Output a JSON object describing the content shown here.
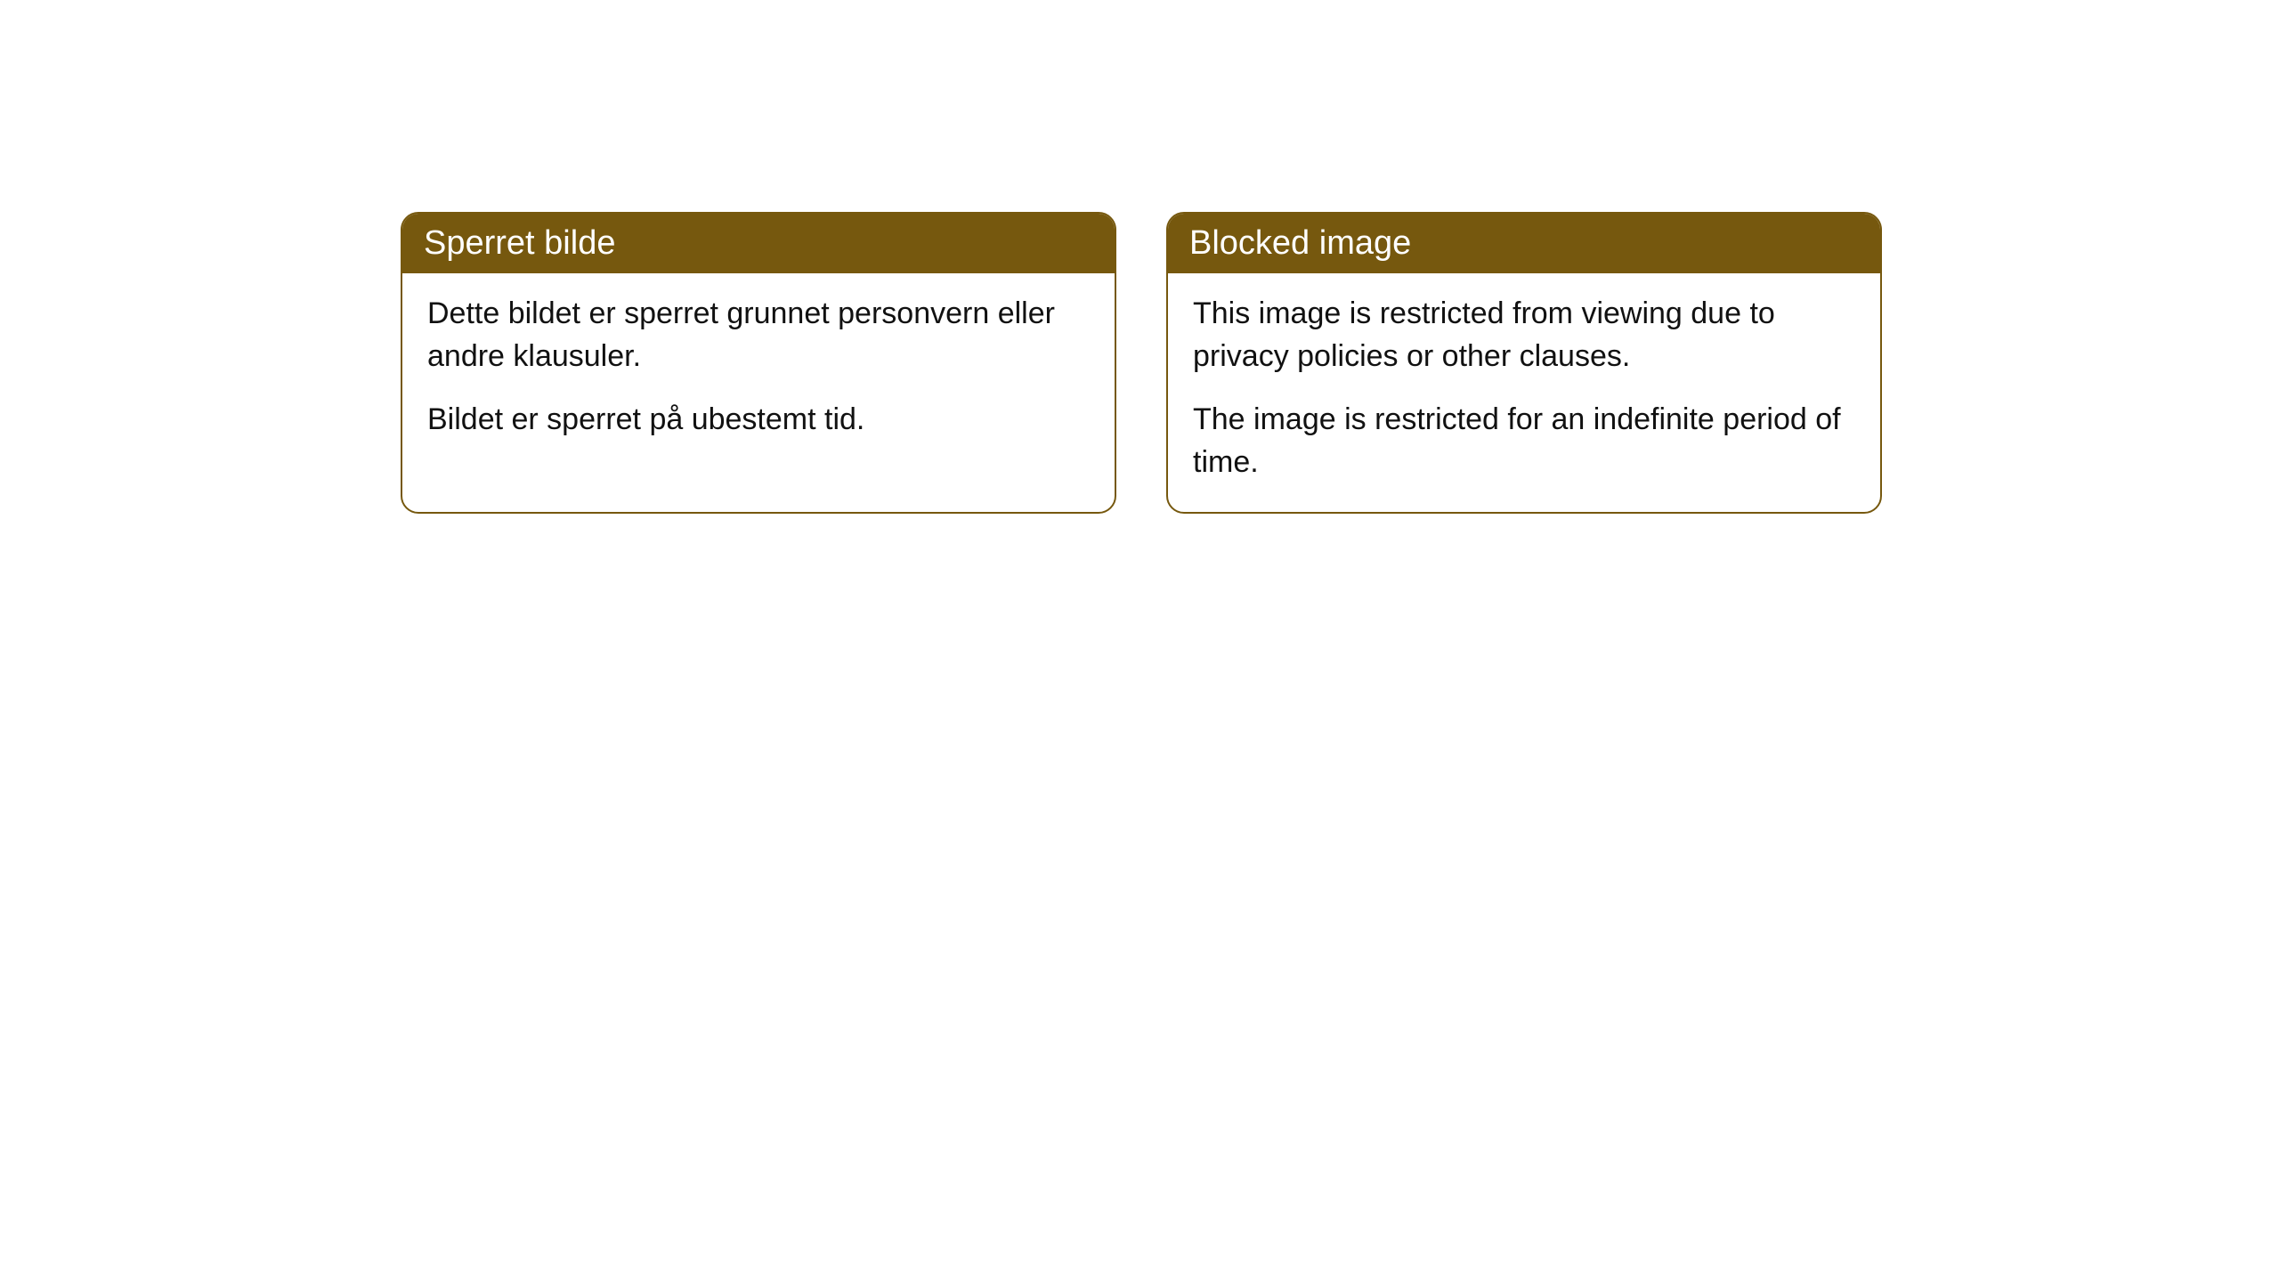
{
  "cards": [
    {
      "title": "Sperret bilde",
      "paragraph1": "Dette bildet er sperret grunnet personvern eller andre klausuler.",
      "paragraph2": "Bildet er sperret på ubestemt tid."
    },
    {
      "title": "Blocked image",
      "paragraph1": "This image is restricted from viewing due to privacy policies or other clauses.",
      "paragraph2": "The image is restricted for an indefinite period of time."
    }
  ],
  "styling": {
    "header_background": "#76580e",
    "header_text_color": "#ffffff",
    "border_color": "#76580e",
    "body_background": "#ffffff",
    "body_text_color": "#111111",
    "border_radius": 20,
    "title_fontsize": 38,
    "body_fontsize": 34
  }
}
